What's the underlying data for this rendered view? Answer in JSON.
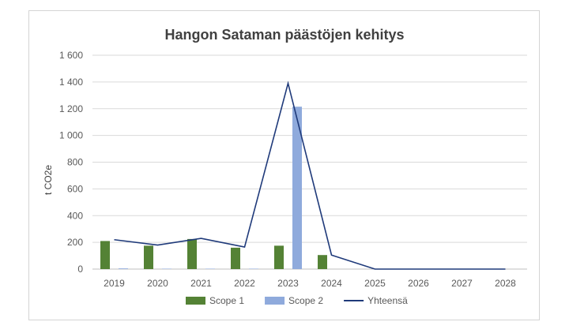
{
  "chart_data": {
    "type": "bar",
    "title": "Hangon Sataman päästöjen kehitys",
    "xlabel": "",
    "ylabel": "t CO2e",
    "categories": [
      "2019",
      "2020",
      "2021",
      "2022",
      "2023",
      "2024",
      "2025",
      "2026",
      "2027",
      "2028"
    ],
    "ylim": [
      0,
      1600
    ],
    "yticks": [
      0,
      200,
      400,
      600,
      800,
      1000,
      1200,
      1400,
      1600
    ],
    "ytick_labels": [
      "0",
      "200",
      "400",
      "600",
      "800",
      "1 000",
      "1 200",
      "1 400",
      "1 600"
    ],
    "grid": true,
    "legend_position": "bottom",
    "series": [
      {
        "name": "Scope 1",
        "kind": "bar",
        "color": "#548235",
        "values": [
          210,
          175,
          225,
          160,
          175,
          105,
          0,
          0,
          0,
          0
        ]
      },
      {
        "name": "Scope 2",
        "kind": "bar",
        "color": "#8faadc",
        "values": [
          5,
          3,
          3,
          3,
          1215,
          0,
          0,
          0,
          0,
          0
        ]
      },
      {
        "name": "Yhteensä",
        "kind": "line",
        "color": "#1f3a7a",
        "values": [
          220,
          180,
          230,
          165,
          1390,
          105,
          0,
          0,
          0,
          0
        ]
      }
    ]
  }
}
